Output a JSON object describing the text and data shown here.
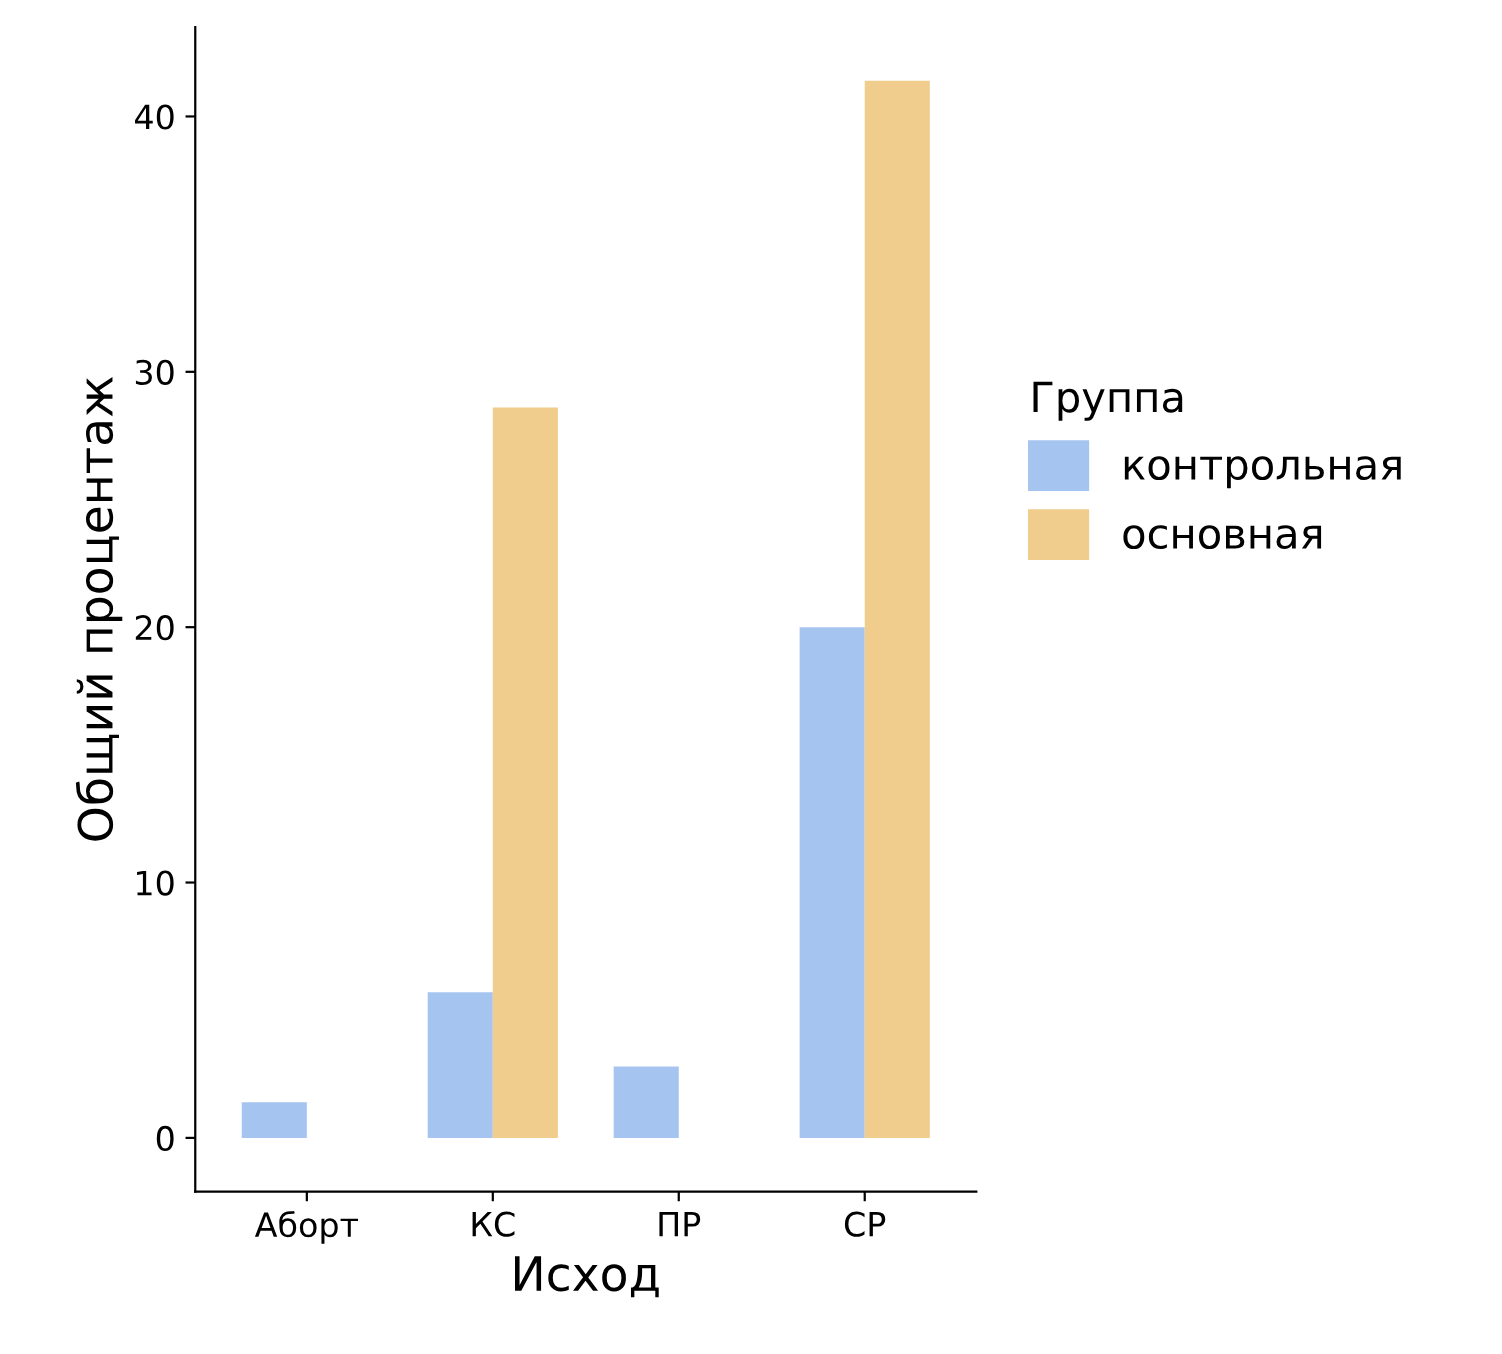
{
  "chart_data": {
    "type": "bar",
    "xlabel": "Исход",
    "ylabel": "Общий процентаж",
    "legend_title": "Группа",
    "categories": [
      "Аборт",
      "КС",
      "ПР",
      "СР"
    ],
    "series": [
      {
        "name": "контрольная",
        "color": "#a6c4f0",
        "values": [
          1.4,
          5.7,
          2.8,
          20.0
        ]
      },
      {
        "name": "основная",
        "color": "#f0cd8c",
        "values": [
          null,
          28.6,
          null,
          41.4
        ]
      }
    ],
    "ylim": [
      -2.1,
      43.5
    ],
    "yticks": [
      0,
      10,
      20,
      30,
      40
    ],
    "grid": false,
    "legend": "right"
  }
}
